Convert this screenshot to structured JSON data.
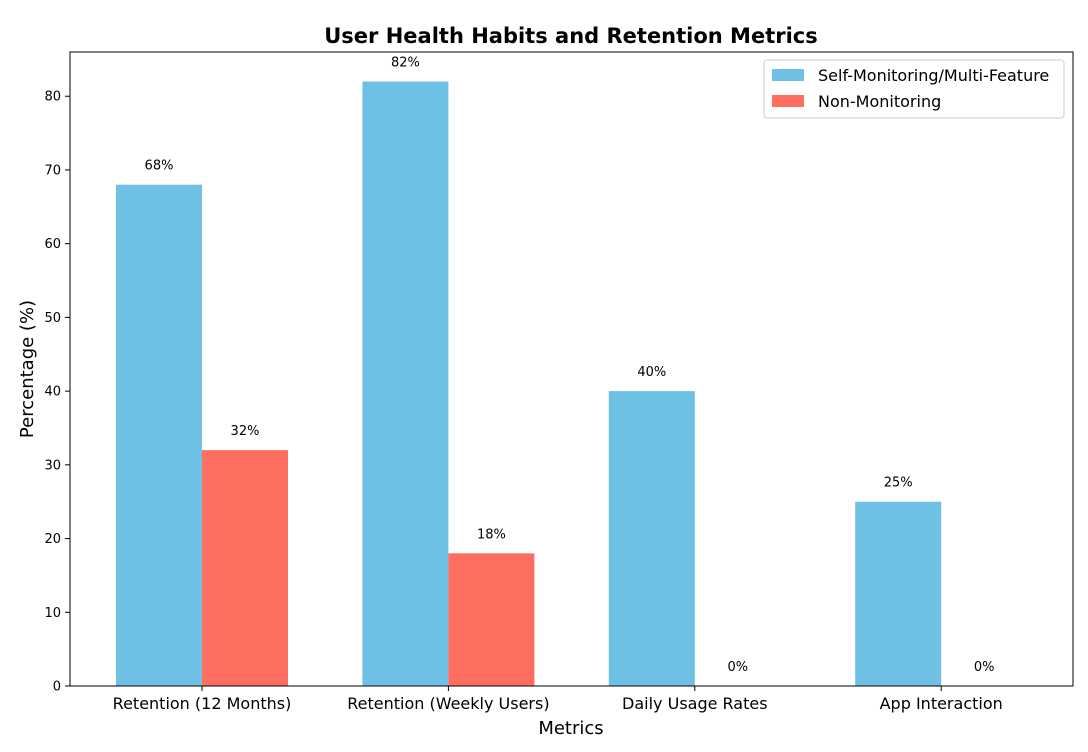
{
  "chart_data": {
    "type": "bar",
    "title": "User Health Habits and Retention Metrics",
    "xlabel": "Metrics",
    "ylabel": "Percentage (%)",
    "categories": [
      "Retention (12 Months)",
      "Retention (Weekly Users)",
      "Daily Usage Rates",
      "App Interaction"
    ],
    "series": [
      {
        "name": "Self-Monitoring/Multi-Feature",
        "values": [
          68,
          82,
          40,
          25
        ],
        "labels": [
          "68%",
          "82%",
          "40%",
          "25%"
        ],
        "color": "#6EC1E4"
      },
      {
        "name": "Non-Monitoring",
        "values": [
          32,
          18,
          0,
          0
        ],
        "labels": [
          "32%",
          "18%",
          "0%",
          "0%"
        ],
        "color": "#FF6F61"
      }
    ],
    "ylim": [
      0,
      86
    ],
    "yticks": [
      0,
      10,
      20,
      30,
      40,
      50,
      60,
      70,
      80
    ],
    "grid": false,
    "legend_position": "top-right"
  }
}
